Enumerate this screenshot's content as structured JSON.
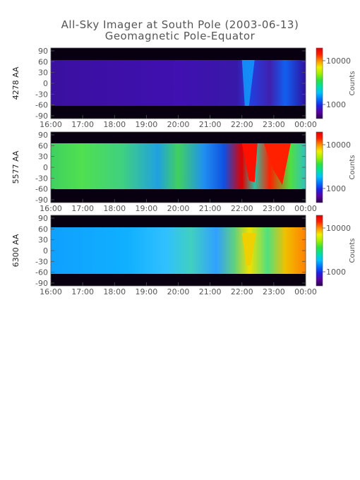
{
  "header": {
    "title": "All-Sky Imager at South Pole (2003-06-13)",
    "subtitle": "Geomagnetic Pole-Equator"
  },
  "chart_data": [
    {
      "type": "heatmap",
      "ylabel": "4278 AA",
      "x_tick_labels": [
        "16:00",
        "17:00",
        "18:00",
        "19:00",
        "20:00",
        "21:00",
        "22:00",
        "23:00",
        "00:00"
      ],
      "y_tick_labels": [
        "90",
        "60",
        "30",
        "0",
        "-30",
        "-60",
        "-90"
      ],
      "ylim": [
        -90,
        90
      ],
      "colorbar_label": "Counts",
      "colorbar_ticks": [
        "10000",
        "1000"
      ],
      "scale": "log",
      "valid_band": [
        -55,
        62
      ]
    },
    {
      "type": "heatmap",
      "ylabel": "5577 AA",
      "x_tick_labels": [
        "16:00",
        "17:00",
        "18:00",
        "19:00",
        "20:00",
        "21:00",
        "22:00",
        "23:00",
        "00:00"
      ],
      "y_tick_labels": [
        "90",
        "60",
        "30",
        "0",
        "-30",
        "-60",
        "-90"
      ],
      "ylim": [
        -90,
        90
      ],
      "colorbar_label": "Counts",
      "colorbar_ticks": [
        "10000",
        "1000"
      ],
      "scale": "log",
      "valid_band": [
        -55,
        62
      ]
    },
    {
      "type": "heatmap",
      "ylabel": "6300 AA",
      "x_tick_labels": [
        "16:00",
        "17:00",
        "18:00",
        "19:00",
        "20:00",
        "21:00",
        "22:00",
        "23:00",
        "00:00"
      ],
      "y_tick_labels": [
        "90",
        "60",
        "30",
        "0",
        "-30",
        "-60",
        "-90"
      ],
      "ylim": [
        -90,
        90
      ],
      "colorbar_label": "Counts",
      "colorbar_ticks": [
        "10000",
        "1000"
      ],
      "scale": "log",
      "valid_band": [
        -55,
        62
      ]
    }
  ],
  "colors": {
    "axis": "#555555",
    "background_dark": "#080010",
    "colormap": [
      "#2a004a",
      "#5a00a0",
      "#2020e0",
      "#0070ff",
      "#00c0ff",
      "#00e0a0",
      "#30e040",
      "#a0f000",
      "#f0f000",
      "#ff9000",
      "#ff2000",
      "#e00000"
    ]
  }
}
